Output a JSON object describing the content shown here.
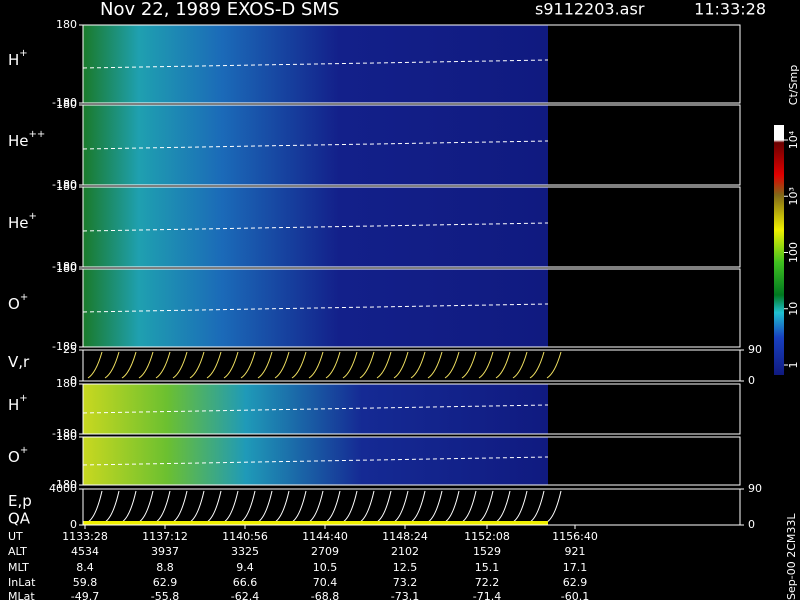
{
  "header": {
    "title": "Nov 22, 1989   EXOS-D SMS",
    "file": "s9112203.asr",
    "time": "11:33:28"
  },
  "panels": [
    {
      "label": "H",
      "sup": "+",
      "ylim": [
        -180,
        180
      ],
      "yticks": [
        -180,
        180
      ]
    },
    {
      "label": "He",
      "sup": "++",
      "ylim": [
        -180,
        180
      ],
      "yticks": [
        -180,
        180
      ]
    },
    {
      "label": "He",
      "sup": "+",
      "ylim": [
        -180,
        180
      ],
      "yticks": [
        -180,
        180
      ]
    },
    {
      "label": "O",
      "sup": "+",
      "ylim": [
        -180,
        180
      ],
      "yticks": [
        -180,
        180
      ]
    },
    {
      "label": "V,r",
      "ylim": [
        0,
        25
      ],
      "yticks": [
        0,
        25
      ],
      "y2lim": [
        0,
        90
      ],
      "y2ticks": [
        0,
        90
      ]
    },
    {
      "label": "H",
      "sup": "+",
      "ylim": [
        -180,
        180
      ],
      "yticks": [
        -180,
        180
      ]
    },
    {
      "label": "O",
      "sup": "+",
      "ylim": [
        -180,
        180
      ],
      "yticks": [
        -180,
        180
      ]
    },
    {
      "label": "E,p",
      "label2": "QA",
      "ylim": [
        0,
        4000
      ],
      "yticks": [
        0,
        4000
      ],
      "y2lim": [
        0,
        90
      ],
      "y2ticks": [
        0,
        90
      ]
    }
  ],
  "colorbar": {
    "label": "Ct/Smp",
    "lim": [
      1,
      10000
    ],
    "ticks": [
      1,
      10,
      100,
      {
        "value": 1000,
        "label": "10³"
      },
      {
        "value": 10000,
        "label": "10⁴"
      }
    ]
  },
  "table": {
    "rows": [
      {
        "label": "UT",
        "values": [
          "1133:28",
          "1137:12",
          "1140:56",
          "1144:40",
          "1148:24",
          "1152:08",
          "1156:40"
        ]
      },
      {
        "label": "ALT",
        "values": [
          4534,
          3937,
          3325,
          2709,
          2102,
          1529,
          921
        ]
      },
      {
        "label": "MLT",
        "values": [
          8.4,
          8.8,
          9.4,
          10.5,
          12.5,
          15.1,
          17.1
        ]
      },
      {
        "label": "InLat",
        "values": [
          59.8,
          62.9,
          66.6,
          70.4,
          73.2,
          72.2,
          62.9
        ]
      },
      {
        "label": "MLat",
        "values": [
          -49.7,
          -55.8,
          -62.4,
          -68.8,
          -73.1,
          -71.4,
          -60.1
        ]
      }
    ]
  },
  "footer": "Sep-00 2CM33L"
}
